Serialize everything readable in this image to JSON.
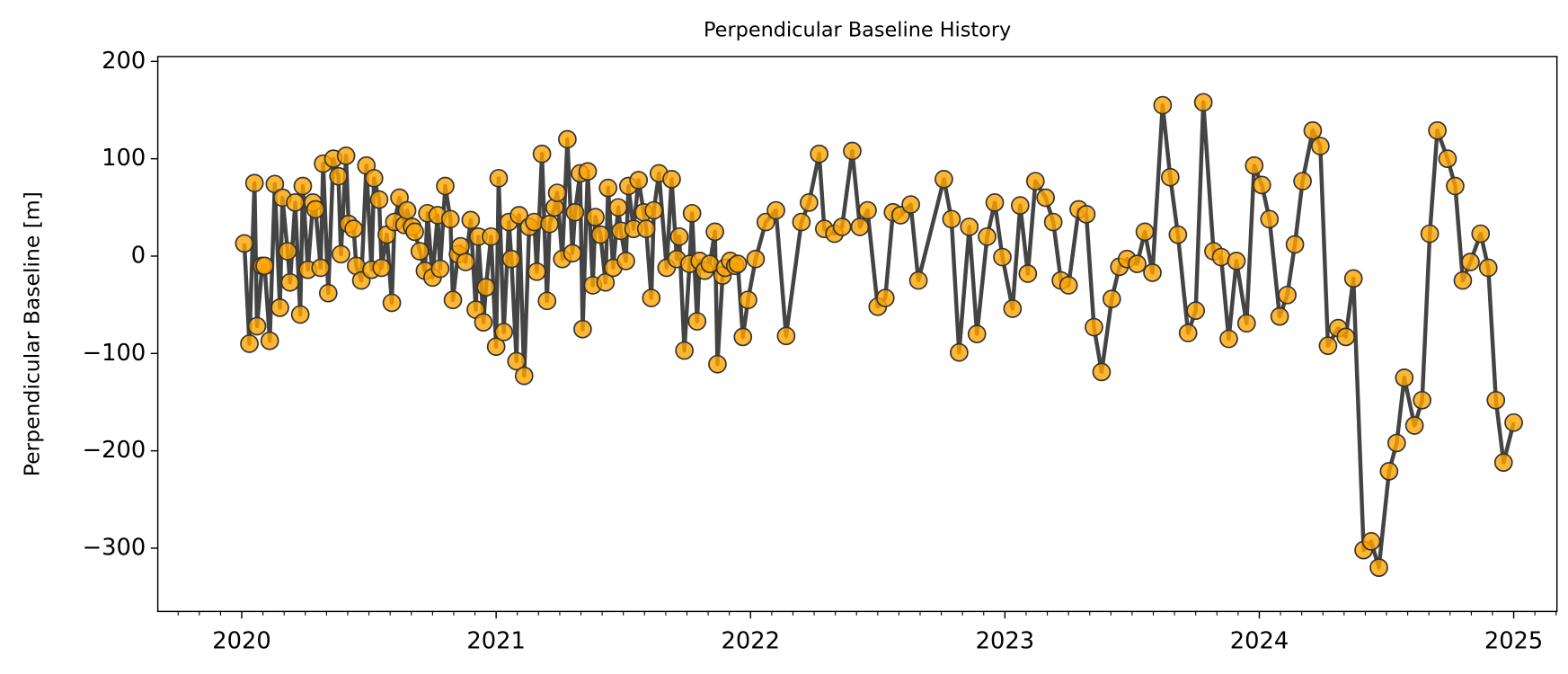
{
  "chart_data": {
    "type": "line",
    "title": "Perpendicular Baseline History",
    "ylabel": "Perpendicular Baseline [m]",
    "line_color": "#444444",
    "marker_color": "#ffa500",
    "marker_edge_color": "#333333",
    "xlim": [
      2019.67,
      2025.17
    ],
    "xticks": [
      2020,
      2021,
      2022,
      2023,
      2024,
      2025
    ],
    "ylim": [
      -365,
      205
    ],
    "yticks": [
      {
        "value": -300,
        "label": "−300"
      },
      {
        "value": -200,
        "label": "−200"
      },
      {
        "value": -100,
        "label": "−100"
      },
      0,
      100,
      200
    ],
    "grid": false,
    "x": [
      2020.01,
      2020.03,
      2020.05,
      2020.06,
      2020.08,
      2020.09,
      2020.11,
      2020.13,
      2020.15,
      2020.16,
      2020.18,
      2020.19,
      2020.21,
      2020.23,
      2020.24,
      2020.26,
      2020.28,
      2020.29,
      2020.31,
      2020.32,
      2020.34,
      2020.36,
      2020.38,
      2020.39,
      2020.41,
      2020.42,
      2020.44,
      2020.45,
      2020.47,
      2020.49,
      2020.51,
      2020.52,
      2020.54,
      2020.55,
      2020.57,
      2020.59,
      2020.6,
      2020.62,
      2020.64,
      2020.65,
      2020.67,
      2020.68,
      2020.7,
      2020.72,
      2020.73,
      2020.75,
      2020.77,
      2020.78,
      2020.8,
      2020.82,
      2020.83,
      2020.85,
      2020.86,
      2020.88,
      2020.9,
      2020.92,
      2020.93,
      2020.95,
      2020.96,
      2020.98,
      2021.0,
      2021.01,
      2021.03,
      2021.05,
      2021.06,
      2021.08,
      2021.09,
      2021.11,
      2021.13,
      2021.15,
      2021.16,
      2021.18,
      2021.2,
      2021.21,
      2021.23,
      2021.24,
      2021.26,
      2021.28,
      2021.3,
      2021.31,
      2021.33,
      2021.34,
      2021.36,
      2021.38,
      2021.39,
      2021.41,
      2021.43,
      2021.44,
      2021.46,
      2021.48,
      2021.49,
      2021.51,
      2021.52,
      2021.54,
      2021.56,
      2021.58,
      2021.59,
      2021.61,
      2021.62,
      2021.64,
      2021.67,
      2021.69,
      2021.71,
      2021.72,
      2021.74,
      2021.76,
      2021.77,
      2021.79,
      2021.8,
      2021.82,
      2021.84,
      2021.86,
      2021.87,
      2021.89,
      2021.9,
      2021.92,
      2021.94,
      2021.95,
      2021.97,
      2021.99,
      2022.02,
      2022.06,
      2022.1,
      2022.14,
      2022.2,
      2022.23,
      2022.27,
      2022.29,
      2022.33,
      2022.36,
      2022.4,
      2022.43,
      2022.46,
      2022.5,
      2022.53,
      2022.56,
      2022.59,
      2022.63,
      2022.66,
      2022.76,
      2022.79,
      2022.82,
      2022.86,
      2022.89,
      2022.93,
      2022.96,
      2022.99,
      2023.03,
      2023.06,
      2023.09,
      2023.12,
      2023.16,
      2023.19,
      2023.22,
      2023.25,
      2023.29,
      2023.32,
      2023.35,
      2023.38,
      2023.42,
      2023.45,
      2023.48,
      2023.52,
      2023.55,
      2023.58,
      2023.62,
      2023.65,
      2023.68,
      2023.72,
      2023.75,
      2023.78,
      2023.82,
      2023.85,
      2023.88,
      2023.91,
      2023.95,
      2023.98,
      2024.01,
      2024.04,
      2024.08,
      2024.11,
      2024.14,
      2024.17,
      2024.21,
      2024.24,
      2024.27,
      2024.31,
      2024.34,
      2024.37,
      2024.41,
      2024.44,
      2024.47,
      2024.51,
      2024.54,
      2024.57,
      2024.61,
      2024.64,
      2024.67,
      2024.7,
      2024.74,
      2024.77,
      2024.8,
      2024.83,
      2024.87,
      2024.9,
      2024.93,
      2024.96,
      2025.0
    ],
    "values": [
      13,
      -90,
      75,
      -72,
      -10,
      -10,
      -87,
      74,
      -53,
      60,
      5,
      -27,
      55,
      -60,
      72,
      -14,
      55,
      48,
      -12,
      95,
      -38,
      100,
      82,
      2,
      103,
      33,
      28,
      -10,
      -25,
      93,
      -14,
      80,
      58,
      -12,
      22,
      -48,
      35,
      60,
      32,
      47,
      30,
      25,
      5,
      -15,
      44,
      -22,
      42,
      -13,
      72,
      38,
      -45,
      2,
      10,
      -6,
      37,
      -55,
      20,
      -68,
      -32,
      20,
      -93,
      80,
      -78,
      35,
      -3,
      -108,
      42,
      -123,
      30,
      35,
      -16,
      105,
      -46,
      33,
      50,
      65,
      -3,
      120,
      3,
      45,
      85,
      -75,
      87,
      -30,
      40,
      22,
      -27,
      70,
      -12,
      50,
      26,
      -5,
      72,
      28,
      78,
      45,
      28,
      -43,
      47,
      85,
      -12,
      79,
      -3,
      20,
      -97,
      -8,
      44,
      -67,
      -5,
      -15,
      -8,
      25,
      -111,
      -20,
      -12,
      -5,
      -10,
      -8,
      -83,
      -45,
      -3,
      35,
      47,
      -82,
      35,
      55,
      105,
      28,
      23,
      30,
      108,
      30,
      47,
      -52,
      -43,
      45,
      42,
      53,
      -25,
      79,
      38,
      -99,
      30,
      -80,
      20,
      55,
      -1,
      -54,
      52,
      -18,
      77,
      60,
      35,
      -25,
      -30,
      48,
      43,
      -73,
      -119,
      -44,
      -11,
      -3,
      -8,
      25,
      -17,
      155,
      81,
      22,
      -79,
      -56,
      158,
      5,
      -1,
      -85,
      -5,
      -69,
      93,
      73,
      38,
      -62,
      -40,
      12,
      77,
      129,
      113,
      -92,
      -74,
      -83,
      -23,
      -302,
      -293,
      -320,
      -221,
      -192,
      -125,
      -174,
      -148,
      23,
      129,
      100,
      72,
      -25,
      -6,
      23,
      -12,
      -148,
      -212,
      -171
    ]
  }
}
